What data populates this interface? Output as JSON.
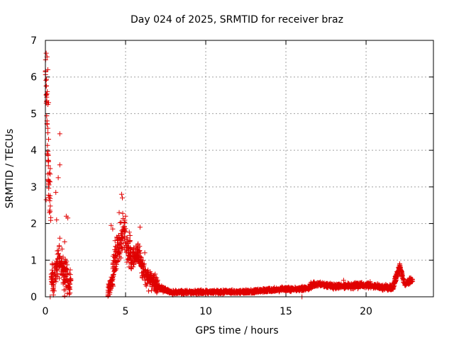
{
  "chart_data": {
    "type": "scatter",
    "title": "Day 024 of 2025, SRMTID for receiver braz",
    "xlabel": "GPS time / hours",
    "ylabel": "SRMTID / TECUs",
    "xlim": [
      0,
      24.2
    ],
    "ylim": [
      0,
      7
    ],
    "x_ticks": [
      0,
      5,
      10,
      15,
      20
    ],
    "y_ticks": [
      0,
      1,
      2,
      3,
      4,
      5,
      6,
      7
    ],
    "grid": true,
    "marker": "+",
    "color": "#e00000",
    "series": [
      {
        "name": "braz",
        "segments": [
          {
            "x_start": 0.0,
            "x_end": 0.35,
            "profile": [
              [
                0.0,
                6.6
              ],
              [
                0.1,
                5.0
              ],
              [
                0.2,
                3.2
              ],
              [
                0.35,
                2.0
              ]
            ],
            "spread": 0.9
          },
          {
            "x_start": 0.35,
            "x_end": 1.6,
            "profile": [
              [
                0.35,
                0.5
              ],
              [
                0.6,
                0.6
              ],
              [
                0.9,
                1.0
              ],
              [
                1.2,
                0.6
              ],
              [
                1.6,
                0.3
              ]
            ],
            "spread": 0.6
          },
          {
            "x_start": 3.9,
            "x_end": 4.2,
            "profile": [
              [
                3.9,
                0.1
              ],
              [
                4.2,
                0.5
              ]
            ],
            "spread": 0.3
          },
          {
            "x_start": 4.2,
            "x_end": 5.3,
            "profile": [
              [
                4.2,
                0.8
              ],
              [
                4.6,
                1.4
              ],
              [
                4.9,
                1.8
              ],
              [
                5.3,
                1.1
              ]
            ],
            "spread": 0.7
          },
          {
            "x_start": 5.3,
            "x_end": 7.0,
            "profile": [
              [
                5.3,
                1.0
              ],
              [
                5.8,
                1.2
              ],
              [
                6.2,
                0.6
              ],
              [
                7.0,
                0.3
              ]
            ],
            "spread": 0.4
          },
          {
            "x_start": 7.0,
            "x_end": 8.0,
            "profile": [
              [
                7.0,
                0.25
              ],
              [
                8.0,
                0.12
              ]
            ],
            "spread": 0.1
          },
          {
            "x_start": 8.0,
            "x_end": 13.0,
            "profile": [
              [
                8.0,
                0.12
              ],
              [
                10.0,
                0.13
              ],
              [
                13.0,
                0.14
              ]
            ],
            "spread": 0.07
          },
          {
            "x_start": 13.0,
            "x_end": 16.5,
            "profile": [
              [
                13.0,
                0.15
              ],
              [
                14.5,
                0.2
              ],
              [
                16.0,
                0.22
              ],
              [
                16.5,
                0.25
              ]
            ],
            "spread": 0.08
          },
          {
            "x_start": 16.5,
            "x_end": 21.7,
            "profile": [
              [
                16.5,
                0.3
              ],
              [
                17.0,
                0.35
              ],
              [
                18.0,
                0.28
              ],
              [
                19.0,
                0.3
              ],
              [
                20.2,
                0.33
              ],
              [
                21.0,
                0.25
              ],
              [
                21.7,
                0.25
              ]
            ],
            "spread": 0.1
          },
          {
            "x_start": 21.7,
            "x_end": 22.9,
            "profile": [
              [
                21.7,
                0.3
              ],
              [
                22.0,
                0.7
              ],
              [
                22.1,
                0.85
              ],
              [
                22.4,
                0.35
              ],
              [
                22.9,
                0.45
              ]
            ],
            "spread": 0.12
          }
        ],
        "points": [
          [
            0.05,
            6.65
          ],
          [
            0.1,
            6.55
          ],
          [
            0.15,
            6.2
          ],
          [
            0.12,
            5.6
          ],
          [
            0.05,
            5.75
          ],
          [
            0.2,
            5.3
          ],
          [
            0.15,
            5.25
          ],
          [
            0.1,
            4.8
          ],
          [
            0.15,
            4.6
          ],
          [
            0.2,
            4.3
          ],
          [
            0.1,
            3.9
          ],
          [
            0.3,
            3.5
          ],
          [
            0.3,
            3.35
          ],
          [
            0.2,
            3.1
          ],
          [
            0.05,
            2.65
          ],
          [
            0.25,
            2.3
          ],
          [
            0.9,
            4.45
          ],
          [
            0.9,
            3.6
          ],
          [
            0.8,
            3.25
          ],
          [
            0.65,
            2.85
          ],
          [
            0.7,
            2.1
          ],
          [
            1.3,
            2.2
          ],
          [
            1.4,
            2.15
          ],
          [
            0.9,
            1.6
          ],
          [
            1.2,
            1.5
          ],
          [
            4.75,
            2.8
          ],
          [
            4.8,
            2.7
          ],
          [
            4.6,
            2.3
          ],
          [
            5.0,
            2.2
          ],
          [
            5.9,
            1.9
          ],
          [
            4.1,
            1.95
          ],
          [
            4.2,
            1.85
          ],
          [
            6.2,
            1.2
          ],
          [
            18.6,
            0.45
          ],
          [
            22.1,
            0.9
          ],
          [
            16.0,
            0.0
          ],
          [
            0.3,
            0.0
          ],
          [
            0.5,
            0.05
          ],
          [
            1.2,
            0.02
          ],
          [
            3.9,
            0.02
          ]
        ]
      }
    ]
  }
}
